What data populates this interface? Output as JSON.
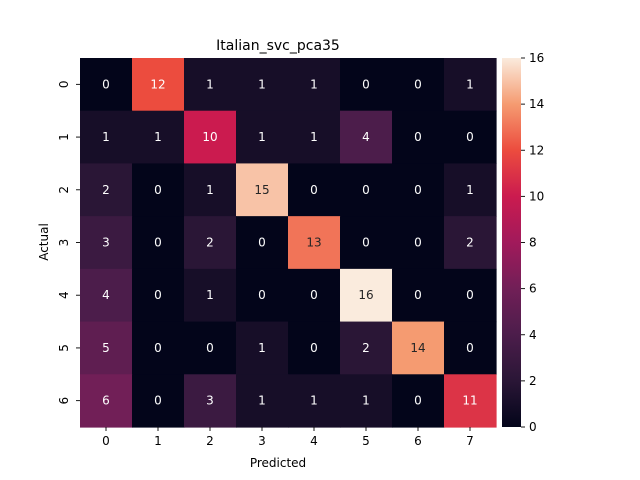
{
  "chart_data": {
    "type": "heatmap",
    "title": "Italian_svc_pca35",
    "xlabel": "Predicted",
    "ylabel": "Actual",
    "x_categories": [
      "0",
      "1",
      "2",
      "3",
      "4",
      "5",
      "6",
      "7"
    ],
    "y_categories": [
      "0",
      "1",
      "2",
      "3",
      "4",
      "5",
      "6"
    ],
    "values": [
      [
        0,
        12,
        1,
        1,
        1,
        0,
        0,
        1
      ],
      [
        1,
        1,
        10,
        1,
        1,
        4,
        0,
        0
      ],
      [
        2,
        0,
        1,
        15,
        0,
        0,
        0,
        1
      ],
      [
        3,
        0,
        2,
        0,
        13,
        0,
        0,
        2
      ],
      [
        4,
        0,
        1,
        0,
        0,
        16,
        0,
        0
      ],
      [
        5,
        0,
        0,
        1,
        0,
        2,
        14,
        0
      ],
      [
        6,
        0,
        3,
        1,
        1,
        1,
        0,
        11
      ]
    ],
    "vmin": 0,
    "vmax": 16,
    "colormap": "rocket",
    "colorbar_ticks": [
      "0",
      "2",
      "4",
      "6",
      "8",
      "10",
      "12",
      "14",
      "16"
    ],
    "colorbar_values": [
      0,
      2,
      4,
      6,
      8,
      10,
      12,
      14,
      16
    ]
  }
}
